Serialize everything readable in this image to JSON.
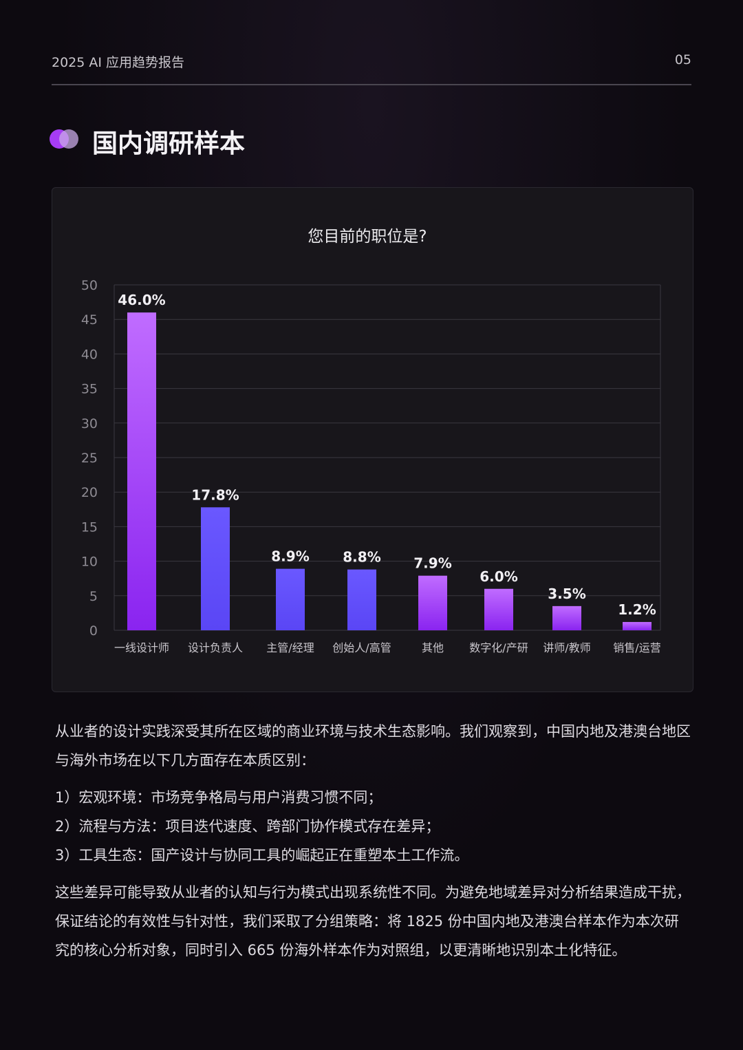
{
  "header": {
    "title": "2025 AI 应用趋势报告",
    "page": "05"
  },
  "section": {
    "heading": "国内调研样本"
  },
  "chart_data": {
    "type": "bar",
    "title": "您目前的职位是?",
    "categories": [
      "一线设计师",
      "设计负责人",
      "主管/经理",
      "创始人/高管",
      "其他",
      "数字化/产研",
      "讲师/教师",
      "销售/运营"
    ],
    "values": [
      46.0,
      17.8,
      8.9,
      8.8,
      7.9,
      6.0,
      3.5,
      1.2
    ],
    "data_labels": [
      "46.0%",
      "17.8%",
      "8.9%",
      "8.8%",
      "7.9%",
      "6.0%",
      "3.5%",
      "1.2%"
    ],
    "yticks": [
      "0",
      "5",
      "10",
      "15",
      "20",
      "25",
      "30",
      "35",
      "40",
      "45",
      "50"
    ],
    "ylim": [
      0,
      50
    ],
    "grid": true,
    "colors": {
      "purple_top": "#c06cff",
      "purple_bottom": "#8a24f0",
      "blue_top": "#6a58ff",
      "blue_bottom": "#5a46f5"
    }
  },
  "body": {
    "para1": "从业者的设计实践深受其所在区域的商业环境与技术生态影响。我们观察到，中国内地及港澳台地区与海外市场在以下几方面存在本质区别：",
    "items": [
      "1）宏观环境：市场竞争格局与用户消费习惯不同；",
      "2）流程与方法：项目迭代速度、跨部门协作模式存在差异；",
      "3）工具生态：国产设计与协同工具的崛起正在重塑本土工作流。"
    ],
    "para2": "这些差异可能导致从业者的认知与行为模式出现系统性不同。为避免地域差异对分析结果造成干扰，保证结论的有效性与针对性，我们采取了分组策略：将 1825 份中国内地及港澳台样本作为本次研究的核心分析对象，同时引入 665 份海外样本作为对照组，以更清晰地识别本土化特征。"
  }
}
